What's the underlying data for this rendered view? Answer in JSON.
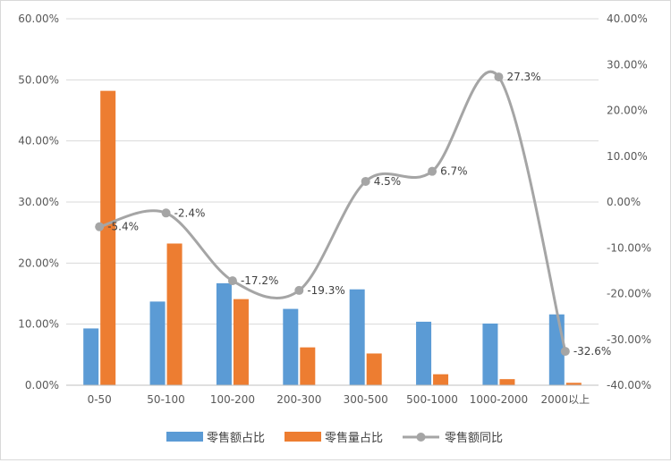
{
  "chart_data": {
    "type": "bar",
    "categories": [
      "0-50",
      "50-100",
      "100-200",
      "200-300",
      "300-500",
      "500-1000",
      "1000-2000",
      "2000以上"
    ],
    "series": [
      {
        "name": "零售额占比",
        "type": "bar",
        "axis": "left",
        "color": "#5B9BD5",
        "values": [
          0.093,
          0.137,
          0.167,
          0.125,
          0.157,
          0.104,
          0.101,
          0.116
        ]
      },
      {
        "name": "零售量占比",
        "type": "bar",
        "axis": "left",
        "color": "#ED7D31",
        "values": [
          0.482,
          0.232,
          0.141,
          0.062,
          0.052,
          0.018,
          0.01,
          0.004
        ]
      },
      {
        "name": "零售额同比",
        "type": "line",
        "axis": "right",
        "color": "#A5A5A5",
        "smooth": true,
        "values": [
          -0.054,
          -0.024,
          -0.172,
          -0.193,
          0.045,
          0.067,
          0.273,
          -0.326
        ],
        "data_labels": [
          "-5.4%",
          "-2.4%",
          "-17.2%",
          "-19.3%",
          "4.5%",
          "6.7%",
          "27.3%",
          "-32.6%"
        ]
      }
    ],
    "y_left": {
      "ylim": [
        0,
        0.6
      ],
      "ticks": [
        0,
        0.1,
        0.2,
        0.3,
        0.4,
        0.5,
        0.6
      ],
      "tick_labels": [
        "0.00%",
        "10.00%",
        "20.00%",
        "30.00%",
        "40.00%",
        "50.00%",
        "60.00%"
      ]
    },
    "y_right": {
      "ylim": [
        -0.4,
        0.4
      ],
      "ticks": [
        -0.4,
        -0.3,
        -0.2,
        -0.1,
        0,
        0.1,
        0.2,
        0.3,
        0.4
      ],
      "tick_labels": [
        "-40.00%",
        "-30.00%",
        "-20.00%",
        "-10.00%",
        "0.00%",
        "10.00%",
        "20.00%",
        "30.00%",
        "40.00%"
      ]
    },
    "grid": true,
    "legend_position": "bottom"
  }
}
